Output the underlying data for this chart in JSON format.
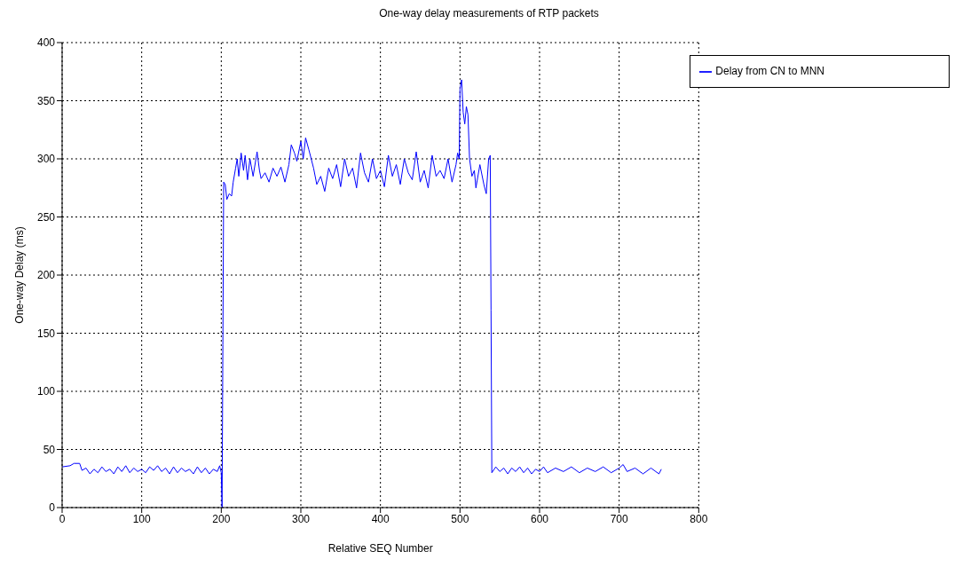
{
  "chart_data": {
    "type": "line",
    "title": "One-way delay measurements of RTP packets",
    "xlabel": "Relative SEQ Number",
    "ylabel": "One-way Delay (ms)",
    "xlim": [
      0,
      800
    ],
    "xticks": [
      0,
      100,
      200,
      300,
      400,
      500,
      600,
      700,
      800
    ],
    "ylim": [
      0,
      400
    ],
    "yticks": [
      0,
      50,
      100,
      150,
      200,
      250,
      300,
      350,
      400
    ],
    "grid": true,
    "legend": "top right",
    "line_style": "solid",
    "marker": "none",
    "series": [
      {
        "name": "Delay from CN to MNN",
        "color": "#0000ff",
        "x": [
          0,
          10,
          15,
          22,
          25,
          30,
          35,
          40,
          45,
          50,
          55,
          60,
          65,
          70,
          75,
          80,
          85,
          90,
          95,
          100,
          105,
          110,
          115,
          120,
          125,
          130,
          135,
          140,
          145,
          150,
          155,
          160,
          165,
          170,
          175,
          180,
          185,
          190,
          195,
          198,
          200,
          201,
          202,
          203,
          205,
          207,
          210,
          213,
          215,
          218,
          220,
          222,
          225,
          228,
          230,
          233,
          236,
          240,
          245,
          248,
          250,
          255,
          260,
          265,
          270,
          275,
          280,
          285,
          288,
          292,
          295,
          300,
          303,
          306,
          310,
          313,
          316,
          320,
          325,
          330,
          335,
          340,
          345,
          350,
          355,
          360,
          365,
          370,
          375,
          380,
          385,
          390,
          395,
          400,
          405,
          410,
          415,
          420,
          425,
          430,
          435,
          440,
          445,
          450,
          455,
          460,
          465,
          470,
          475,
          480,
          485,
          490,
          495,
          497,
          499,
          500,
          502,
          504,
          506,
          508,
          510,
          512,
          515,
          518,
          520,
          525,
          530,
          533,
          536,
          538,
          539,
          540,
          545,
          550,
          555,
          560,
          565,
          570,
          575,
          580,
          585,
          590,
          595,
          600,
          605,
          610,
          620,
          630,
          640,
          650,
          660,
          670,
          680,
          690,
          700,
          705,
          710,
          720,
          730,
          740,
          750,
          753
        ],
        "values": [
          35,
          36,
          38,
          38,
          32,
          34,
          29,
          33,
          30,
          35,
          31,
          33,
          29,
          35,
          31,
          36,
          30,
          34,
          31,
          33,
          30,
          35,
          32,
          36,
          31,
          34,
          29,
          35,
          30,
          34,
          31,
          33,
          29,
          35,
          30,
          34,
          29,
          33,
          31,
          36,
          30,
          0,
          140,
          280,
          278,
          265,
          270,
          268,
          280,
          292,
          300,
          285,
          305,
          290,
          303,
          282,
          300,
          285,
          306,
          290,
          283,
          288,
          280,
          292,
          285,
          293,
          280,
          295,
          312,
          305,
          298,
          315,
          300,
          318,
          308,
          300,
          292,
          278,
          285,
          272,
          292,
          283,
          295,
          276,
          300,
          285,
          292,
          275,
          305,
          288,
          280,
          300,
          283,
          290,
          276,
          303,
          285,
          295,
          278,
          300,
          288,
          282,
          306,
          280,
          290,
          275,
          303,
          285,
          290,
          283,
          300,
          280,
          295,
          305,
          300,
          360,
          368,
          340,
          330,
          345,
          338,
          300,
          285,
          290,
          275,
          295,
          278,
          270,
          300,
          303,
          170,
          30,
          35,
          31,
          34,
          29,
          34,
          31,
          35,
          30,
          34,
          29,
          33,
          31,
          35,
          30,
          34,
          31,
          35,
          30,
          34,
          31,
          35,
          30,
          34,
          37,
          31,
          34,
          29,
          34,
          29,
          33
        ]
      }
    ]
  }
}
